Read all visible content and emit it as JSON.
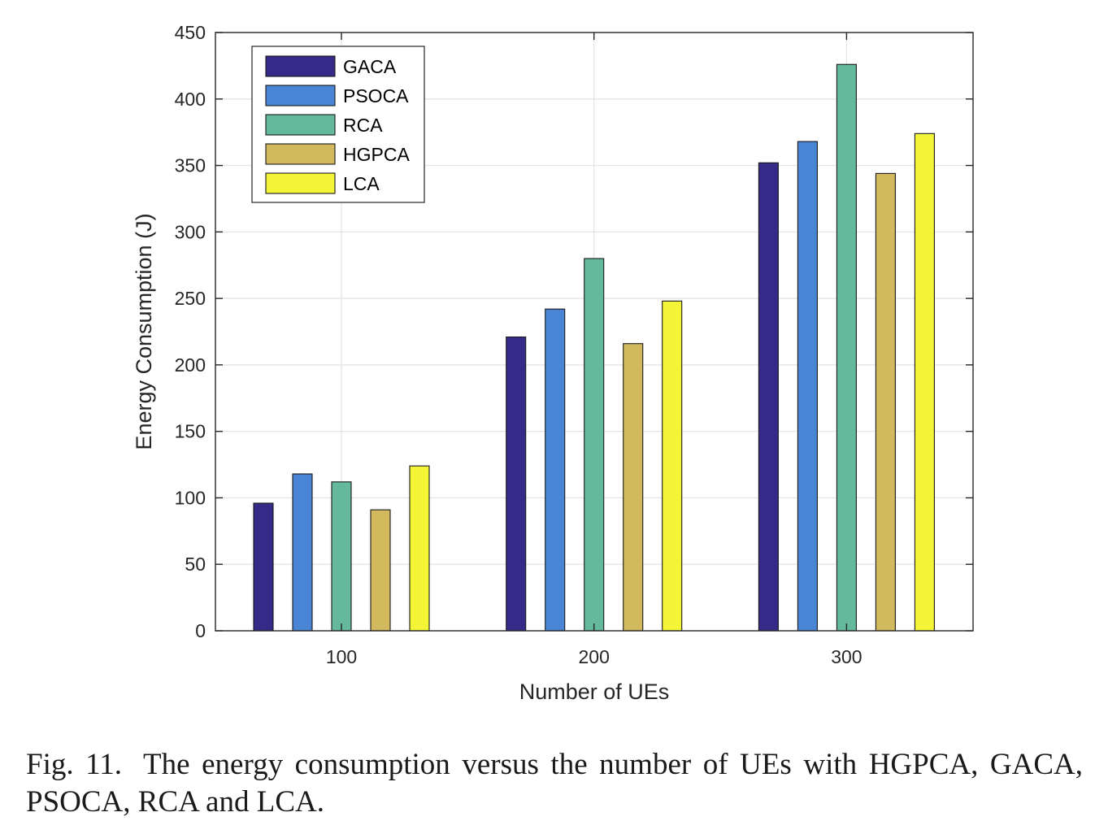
{
  "chart_data": {
    "type": "bar",
    "categories": [
      "100",
      "200",
      "300"
    ],
    "xlabel": "Number of UEs",
    "ylabel": "Energy Consumption (J)",
    "ylim": [
      0,
      450
    ],
    "yticks": [
      0,
      50,
      100,
      150,
      200,
      250,
      300,
      350,
      400,
      450
    ],
    "grid": true,
    "legend_position": "top-left",
    "series": [
      {
        "name": "GACA",
        "color": "#352a87",
        "values": [
          96,
          221,
          352
        ]
      },
      {
        "name": "PSOCA",
        "color": "#4a84d4",
        "values": [
          118,
          242,
          368
        ]
      },
      {
        "name": "RCA",
        "color": "#64b89b",
        "values": [
          112,
          280,
          426
        ]
      },
      {
        "name": "HGPCA",
        "color": "#d2b95d",
        "values": [
          91,
          216,
          344
        ]
      },
      {
        "name": "LCA",
        "color": "#f5f538",
        "values": [
          124,
          248,
          374
        ]
      }
    ]
  },
  "caption": {
    "label": "Fig. 11.",
    "text": "The energy consumption versus the number of UEs with HGPCA, GACA, PSOCA, RCA and LCA."
  }
}
